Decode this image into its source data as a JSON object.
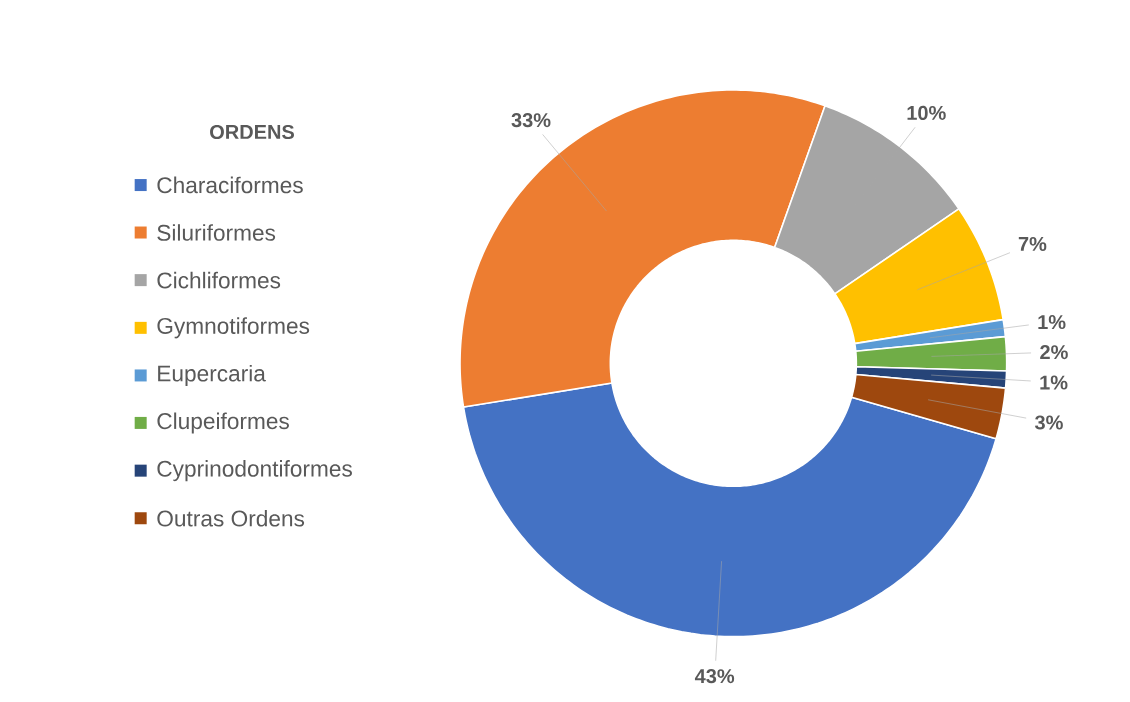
{
  "chart_data": {
    "type": "donut",
    "legend_title": "ORDENS",
    "legend": "left",
    "categories": [
      "Characiformes",
      "Siluriformes",
      "Cichliformes",
      "Gymnotiformes",
      "Eupercaria",
      "Clupeiformes",
      "Cyprinodontiformes",
      "Outras Ordens"
    ],
    "values": [
      43,
      33,
      10,
      7,
      1,
      2,
      1,
      3
    ],
    "value_labels": [
      "43%",
      "33%",
      "10%",
      "7%",
      "1%",
      "2%",
      "1%",
      "3%"
    ],
    "colors": [
      "#4472c4",
      "#ed7d31",
      "#a5a5a5",
      "#ffc000",
      "#5b9bd5",
      "#70ad47",
      "#264478",
      "#9e480e"
    ]
  }
}
